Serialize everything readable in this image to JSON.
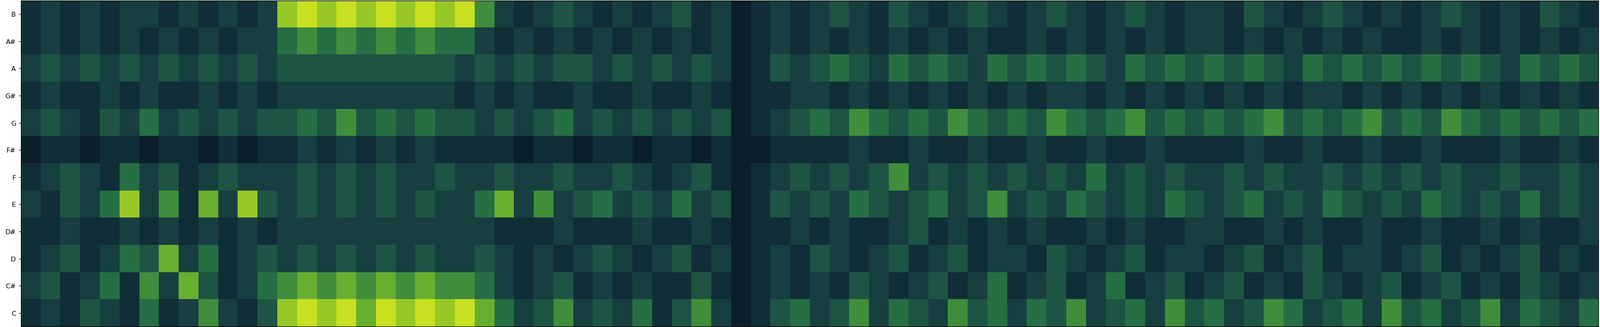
{
  "chart_data": {
    "type": "heatmap",
    "rows": [
      "C",
      "C#",
      "D",
      "D#",
      "E",
      "F",
      "F#",
      "G",
      "G#",
      "A",
      "A#",
      "B"
    ],
    "tick_labels": "y",
    "color_range": [
      0,
      9
    ],
    "cells": [
      [
        2,
        3,
        2,
        4,
        3,
        2,
        5,
        2,
        3,
        6,
        3,
        2,
        4,
        8,
        9,
        8,
        9,
        7,
        9,
        8,
        9,
        8,
        9,
        7,
        5,
        3,
        4,
        6,
        3,
        4,
        3,
        5,
        2,
        4,
        6,
        3,
        1,
        2,
        4,
        5,
        3,
        4,
        6,
        3,
        5,
        4,
        3,
        6,
        4,
        5,
        3,
        5,
        4,
        6,
        3,
        4,
        5,
        3,
        6,
        4,
        5,
        3,
        4,
        6,
        5,
        3,
        4,
        5,
        3,
        6,
        4,
        5,
        3,
        4,
        6,
        3,
        5,
        4,
        3,
        5
      ],
      [
        3,
        4,
        2,
        3,
        5,
        2,
        6,
        3,
        7,
        4,
        2,
        3,
        5,
        6,
        7,
        6,
        7,
        6,
        7,
        6,
        7,
        6,
        6,
        5,
        3,
        2,
        3,
        4,
        2,
        3,
        2,
        3,
        2,
        2,
        4,
        2,
        1,
        2,
        3,
        2,
        3,
        2,
        4,
        3,
        2,
        3,
        4,
        2,
        3,
        5,
        2,
        3,
        4,
        2,
        3,
        5,
        2,
        3,
        4,
        2,
        3,
        4,
        2,
        3,
        2,
        4,
        3,
        2,
        3,
        4,
        2,
        3,
        4,
        2,
        3,
        2,
        4,
        3,
        2,
        3
      ],
      [
        2,
        3,
        4,
        2,
        3,
        5,
        4,
        7,
        3,
        5,
        2,
        3,
        4,
        3,
        4,
        3,
        4,
        3,
        4,
        3,
        4,
        3,
        3,
        4,
        3,
        2,
        3,
        2,
        3,
        4,
        3,
        2,
        3,
        4,
        2,
        3,
        1,
        2,
        3,
        2,
        4,
        3,
        2,
        3,
        4,
        2,
        3,
        4,
        2,
        3,
        3,
        2,
        4,
        3,
        2,
        3,
        4,
        2,
        3,
        3,
        2,
        3,
        4,
        2,
        3,
        4,
        2,
        3,
        3,
        2,
        3,
        4,
        2,
        3,
        2,
        3,
        4,
        2,
        3,
        2
      ],
      [
        2,
        2,
        3,
        2,
        2,
        3,
        2,
        3,
        2,
        3,
        2,
        3,
        2,
        3,
        3,
        3,
        3,
        3,
        3,
        3,
        3,
        3,
        3,
        3,
        2,
        2,
        2,
        3,
        2,
        2,
        2,
        3,
        2,
        2,
        3,
        2,
        1,
        2,
        2,
        3,
        2,
        3,
        2,
        2,
        3,
        4,
        2,
        3,
        2,
        3,
        2,
        3,
        2,
        2,
        3,
        2,
        3,
        2,
        2,
        3,
        3,
        2,
        2,
        3,
        2,
        3,
        2,
        2,
        3,
        2,
        2,
        3,
        2,
        2,
        3,
        2,
        3,
        2,
        2,
        3
      ],
      [
        3,
        2,
        4,
        3,
        5,
        8,
        3,
        6,
        2,
        7,
        3,
        8,
        4,
        3,
        4,
        3,
        4,
        3,
        4,
        3,
        4,
        3,
        3,
        5,
        7,
        3,
        6,
        3,
        4,
        5,
        3,
        4,
        3,
        5,
        3,
        4,
        1,
        2,
        4,
        3,
        4,
        3,
        5,
        4,
        3,
        4,
        5,
        3,
        4,
        6,
        3,
        4,
        3,
        5,
        4,
        3,
        4,
        3,
        5,
        4,
        3,
        4,
        5,
        3,
        4,
        3,
        5,
        4,
        3,
        4,
        3,
        5,
        4,
        3,
        4,
        3,
        5,
        3,
        4,
        3
      ],
      [
        2,
        3,
        4,
        3,
        2,
        5,
        3,
        4,
        2,
        3,
        4,
        3,
        3,
        3,
        4,
        3,
        4,
        3,
        4,
        3,
        3,
        4,
        3,
        3,
        4,
        3,
        3,
        4,
        3,
        3,
        4,
        3,
        2,
        3,
        4,
        2,
        1,
        2,
        3,
        4,
        3,
        4,
        3,
        4,
        6,
        3,
        4,
        3,
        4,
        3,
        4,
        3,
        4,
        3,
        5,
        3,
        4,
        3,
        4,
        3,
        3,
        4,
        3,
        4,
        3,
        3,
        4,
        3,
        4,
        3,
        4,
        3,
        4,
        3,
        3,
        4,
        3,
        3,
        4,
        3
      ],
      [
        1,
        2,
        2,
        1,
        2,
        2,
        1,
        2,
        2,
        1,
        2,
        1,
        2,
        2,
        3,
        2,
        3,
        2,
        3,
        2,
        3,
        2,
        2,
        2,
        2,
        1,
        2,
        2,
        1,
        2,
        2,
        1,
        2,
        2,
        1,
        2,
        1,
        1,
        2,
        2,
        2,
        2,
        3,
        2,
        2,
        3,
        2,
        2,
        3,
        2,
        2,
        3,
        2,
        2,
        3,
        2,
        2,
        3,
        2,
        2,
        2,
        2,
        3,
        2,
        2,
        3,
        2,
        2,
        3,
        2,
        2,
        3,
        2,
        2,
        2,
        3,
        2,
        2,
        3,
        2
      ],
      [
        3,
        4,
        3,
        2,
        4,
        3,
        5,
        3,
        4,
        3,
        4,
        3,
        4,
        4,
        5,
        4,
        6,
        4,
        5,
        4,
        5,
        4,
        4,
        3,
        4,
        3,
        4,
        5,
        3,
        4,
        3,
        4,
        3,
        4,
        3,
        4,
        1,
        2,
        3,
        4,
        5,
        4,
        6,
        5,
        4,
        5,
        4,
        6,
        5,
        4,
        5,
        4,
        6,
        5,
        4,
        5,
        6,
        4,
        5,
        4,
        5,
        4,
        5,
        6,
        4,
        5,
        4,
        5,
        6,
        4,
        5,
        4,
        6,
        5,
        4,
        5,
        4,
        5,
        4,
        5
      ],
      [
        2,
        3,
        2,
        2,
        3,
        2,
        3,
        2,
        2,
        3,
        2,
        3,
        2,
        3,
        3,
        3,
        3,
        3,
        3,
        3,
        3,
        3,
        2,
        3,
        2,
        3,
        2,
        2,
        3,
        2,
        2,
        3,
        2,
        2,
        3,
        2,
        1,
        2,
        2,
        3,
        3,
        2,
        3,
        2,
        3,
        2,
        3,
        2,
        3,
        2,
        3,
        2,
        3,
        3,
        2,
        3,
        2,
        3,
        2,
        3,
        2,
        3,
        2,
        3,
        2,
        3,
        3,
        2,
        3,
        2,
        3,
        2,
        3,
        2,
        3,
        2,
        3,
        2,
        3,
        2
      ],
      [
        3,
        4,
        3,
        4,
        3,
        4,
        3,
        4,
        3,
        4,
        3,
        4,
        3,
        4,
        4,
        4,
        4,
        4,
        4,
        4,
        4,
        4,
        3,
        4,
        3,
        4,
        3,
        4,
        4,
        3,
        4,
        3,
        4,
        3,
        4,
        3,
        1,
        2,
        4,
        3,
        4,
        5,
        4,
        3,
        5,
        4,
        5,
        4,
        3,
        5,
        4,
        5,
        4,
        5,
        4,
        3,
        5,
        4,
        5,
        4,
        5,
        4,
        5,
        4,
        3,
        5,
        4,
        5,
        4,
        5,
        4,
        5,
        4,
        5,
        4,
        3,
        5,
        4,
        5,
        4
      ],
      [
        2,
        3,
        2,
        3,
        2,
        3,
        2,
        3,
        2,
        3,
        2,
        3,
        3,
        5,
        6,
        5,
        6,
        5,
        6,
        5,
        6,
        5,
        5,
        3,
        2,
        3,
        2,
        3,
        2,
        3,
        2,
        3,
        2,
        3,
        2,
        3,
        1,
        2,
        3,
        2,
        3,
        2,
        3,
        2,
        3,
        2,
        3,
        2,
        3,
        2,
        2,
        3,
        2,
        3,
        2,
        3,
        2,
        3,
        2,
        3,
        3,
        2,
        3,
        2,
        3,
        2,
        3,
        2,
        3,
        2,
        2,
        3,
        2,
        3,
        2,
        3,
        2,
        3,
        2,
        3
      ],
      [
        2,
        3,
        2,
        3,
        2,
        3,
        3,
        2,
        3,
        2,
        3,
        2,
        3,
        8,
        9,
        8,
        9,
        8,
        9,
        8,
        9,
        8,
        9,
        6,
        3,
        2,
        3,
        4,
        3,
        2,
        3,
        2,
        3,
        4,
        2,
        3,
        1,
        2,
        3,
        2,
        3,
        4,
        3,
        2,
        4,
        3,
        2,
        3,
        4,
        3,
        2,
        3,
        4,
        3,
        2,
        3,
        4,
        3,
        2,
        3,
        3,
        2,
        4,
        3,
        2,
        3,
        4,
        3,
        2,
        3,
        2,
        3,
        4,
        3,
        2,
        3,
        2,
        4,
        3,
        2
      ]
    ]
  }
}
